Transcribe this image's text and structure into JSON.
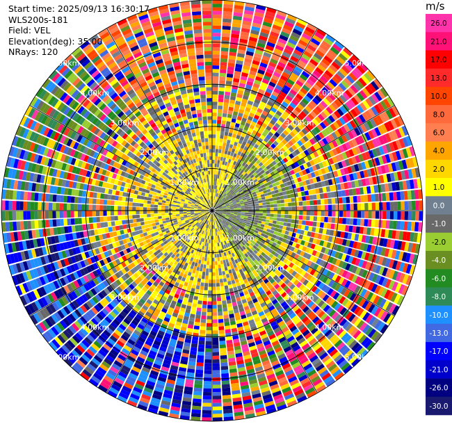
{
  "header": {
    "start_time": "Start time: 2025/09/13 16:30:17",
    "instrument": "WLS200s-181",
    "field": "Field: VEL",
    "elevation": "Elevation(deg): 35.00",
    "nrays": "NRays: 120"
  },
  "colorbar": {
    "unit": "m/s",
    "ticks": [
      "26.0",
      "21.0",
      "17.0",
      "13.0",
      "10.0",
      "8.0",
      "6.0",
      "4.0",
      "2.0",
      "1.0",
      "0.0",
      "-1.0",
      "-2.0",
      "-4.0",
      "-6.0",
      "-8.0",
      "-10.0",
      "-13.0",
      "-17.0",
      "-21.0",
      "-26.0",
      "-30.0"
    ],
    "colors": [
      "#ff33aa",
      "#ff1177",
      "#ff0000",
      "#ff2b2b",
      "#ff4500",
      "#ff6a3d",
      "#ff7f50",
      "#ffa500",
      "#ffd700",
      "#ffff00",
      "#708090",
      "#696969",
      "#9acd32",
      "#6b8e23",
      "#228b22",
      "#2e8b57",
      "#1e90ff",
      "#4169e1",
      "#0000ff",
      "#0000cd",
      "#000080",
      "#191970"
    ]
  },
  "chart_data": {
    "type": "heatmap",
    "projection": "polar PPI (plan position indicator)",
    "field": "VEL",
    "units": "m/s",
    "n_rays": 120,
    "elevation_deg": 35.0,
    "range_max_km": 5.0,
    "range_rings_km": [
      1,
      2,
      3,
      4,
      5
    ],
    "range_ring_labels": [
      "1.00km",
      "2.00km",
      "3.00km",
      "4.00km",
      "5.00km"
    ],
    "spoke_interval_deg": 30,
    "value_range": [
      -30.0,
      26.0
    ],
    "pattern_summary": {
      "inner_0_to_1km": "mostly 0 to 4 m/s (gray / yellow), green -2 to -4 m/s on east side",
      "south_west_outer": "strong negative -13 to -26 m/s (blue)",
      "north_east_outer": "positive 8 to 26 m/s (orange / red / magenta)",
      "north_west_outer": "mixed -4 to -13 m/s (green / blue)"
    }
  }
}
